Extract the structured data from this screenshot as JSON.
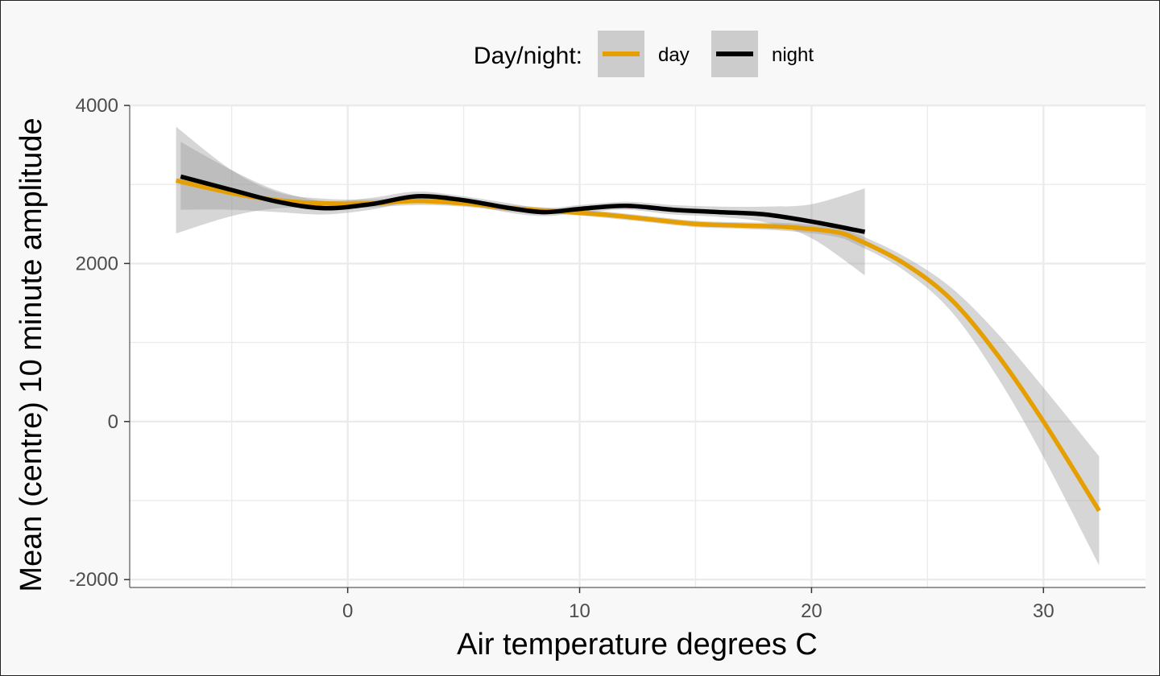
{
  "chart_data": {
    "type": "line",
    "xlabel": "Air temperature degrees C",
    "ylabel": "Mean (centre) 10 minute amplitude",
    "xlim": [
      -9.4,
      34.4
    ],
    "ylim": [
      -2100,
      4000
    ],
    "x_ticks": [
      0,
      10,
      20,
      30
    ],
    "x_tick_labels": [
      "0",
      "10",
      "20",
      "30"
    ],
    "y_ticks": [
      -2000,
      0,
      2000,
      4000
    ],
    "y_tick_labels": [
      "-2000",
      "0",
      "2000",
      "4000"
    ],
    "grid": true,
    "legend": {
      "title": "Day/night:",
      "position": "top"
    },
    "series": [
      {
        "name": "day",
        "color": "#E69F00",
        "x": [
          -7.4,
          -5,
          -3,
          -1,
          1,
          3,
          5,
          7,
          9,
          11,
          13,
          15,
          17,
          19,
          21,
          22,
          24,
          26,
          28,
          30,
          32.4
        ],
        "y": [
          3050,
          2890,
          2800,
          2760,
          2760,
          2790,
          2760,
          2700,
          2660,
          2620,
          2560,
          2500,
          2480,
          2460,
          2400,
          2300,
          2000,
          1550,
          850,
          0,
          -1130
        ],
        "lower": [
          2380,
          2600,
          2700,
          2700,
          2710,
          2740,
          2720,
          2660,
          2630,
          2580,
          2520,
          2460,
          2440,
          2410,
          2340,
          2230,
          1910,
          1400,
          570,
          -450,
          -1820
        ],
        "upper": [
          3730,
          3180,
          2900,
          2820,
          2810,
          2840,
          2800,
          2740,
          2700,
          2660,
          2600,
          2540,
          2520,
          2510,
          2460,
          2370,
          2090,
          1700,
          1120,
          430,
          -440
        ]
      },
      {
        "name": "night",
        "color": "#000000",
        "x": [
          -7.2,
          -5,
          -3,
          -1,
          1,
          3,
          5,
          7,
          8.5,
          10,
          12,
          14,
          16,
          18,
          20,
          22.3
        ],
        "y": [
          3100,
          2930,
          2780,
          2700,
          2750,
          2850,
          2800,
          2700,
          2650,
          2690,
          2730,
          2680,
          2650,
          2620,
          2530,
          2400
        ],
        "lower": [
          2680,
          2680,
          2650,
          2620,
          2680,
          2790,
          2750,
          2640,
          2600,
          2640,
          2680,
          2620,
          2590,
          2520,
          2320,
          1850
        ],
        "upper": [
          3540,
          3180,
          2920,
          2790,
          2830,
          2910,
          2850,
          2760,
          2700,
          2740,
          2780,
          2740,
          2720,
          2720,
          2750,
          2950
        ]
      }
    ]
  }
}
